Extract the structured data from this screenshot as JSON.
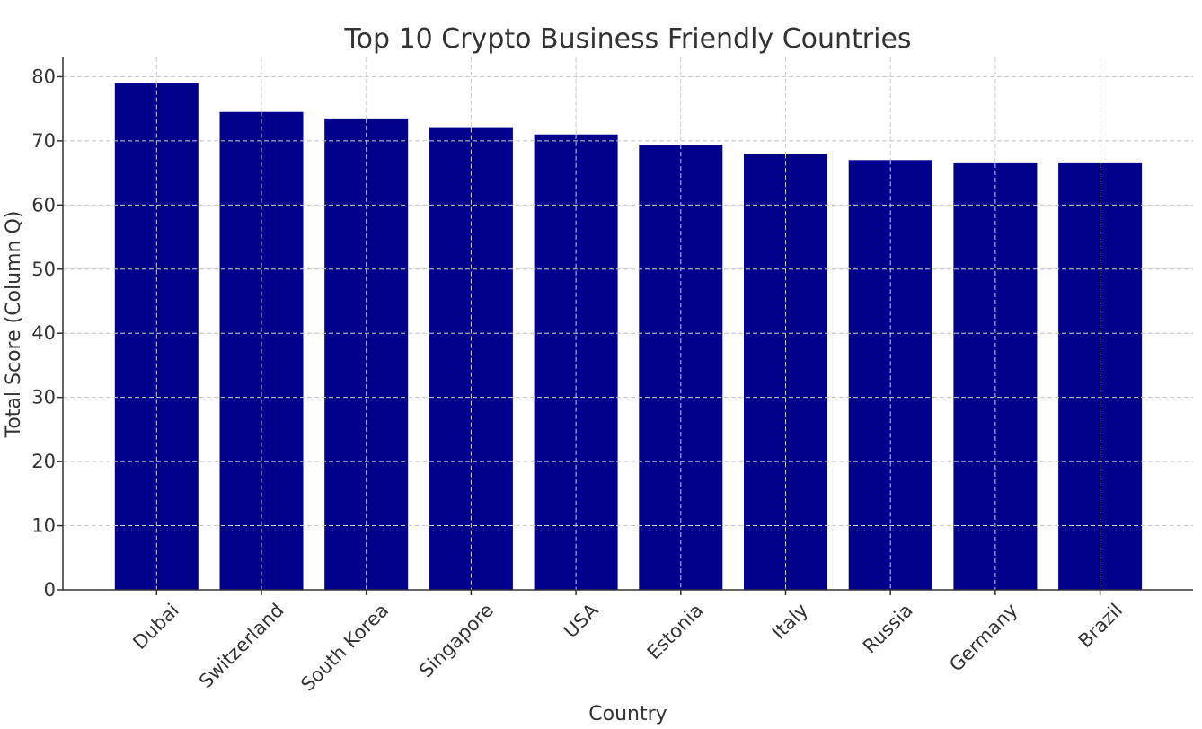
{
  "chart_data": {
    "type": "bar",
    "title": "Top 10 Crypto Business Friendly Countries",
    "xlabel": "Country",
    "ylabel": "Total Score (Column Q)",
    "categories": [
      "Dubai",
      "Switzerland",
      "South Korea",
      "Singapore",
      "USA",
      "Estonia",
      "Italy",
      "Russia",
      "Germany",
      "Brazil"
    ],
    "values": [
      79,
      74.5,
      73.5,
      72,
      71,
      69.4,
      68,
      67,
      66.5,
      66.5
    ],
    "ylim": [
      0,
      83
    ],
    "yticks": [
      0,
      10,
      20,
      30,
      40,
      50,
      60,
      70,
      80
    ],
    "grid": true,
    "bar_color": "#00008b"
  }
}
